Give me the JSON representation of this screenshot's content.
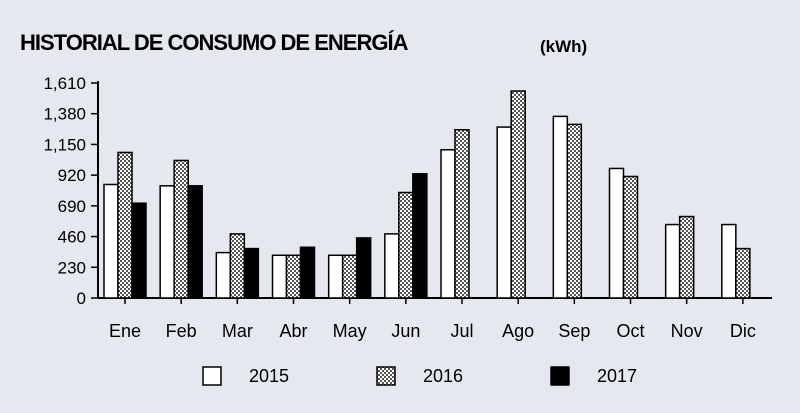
{
  "chart_data": {
    "type": "bar",
    "title": "HISTORIAL DE CONSUMO DE ENERGÍA",
    "unit": "(kWh)",
    "categories": [
      "Ene",
      "Feb",
      "Mar",
      "Abr",
      "May",
      "Jun",
      "Jul",
      "Ago",
      "Sep",
      "Oct",
      "Nov",
      "Dic"
    ],
    "y_ticks": [
      "0",
      "230",
      "460",
      "690",
      "920",
      "1,150",
      "1,380",
      "1,610"
    ],
    "ylim": [
      0,
      1610
    ],
    "grid": false,
    "legend_position": "bottom",
    "series": [
      {
        "name": "2015",
        "fill": "white",
        "values": [
          850,
          840,
          340,
          320,
          320,
          480,
          1110,
          1280,
          1360,
          970,
          550,
          550
        ]
      },
      {
        "name": "2016",
        "fill": "pattern",
        "values": [
          1090,
          1030,
          480,
          320,
          320,
          790,
          1260,
          1550,
          1300,
          910,
          610,
          370
        ]
      },
      {
        "name": "2017",
        "fill": "black",
        "values": [
          710,
          840,
          370,
          380,
          450,
          930,
          null,
          null,
          null,
          null,
          null,
          null
        ]
      }
    ]
  }
}
